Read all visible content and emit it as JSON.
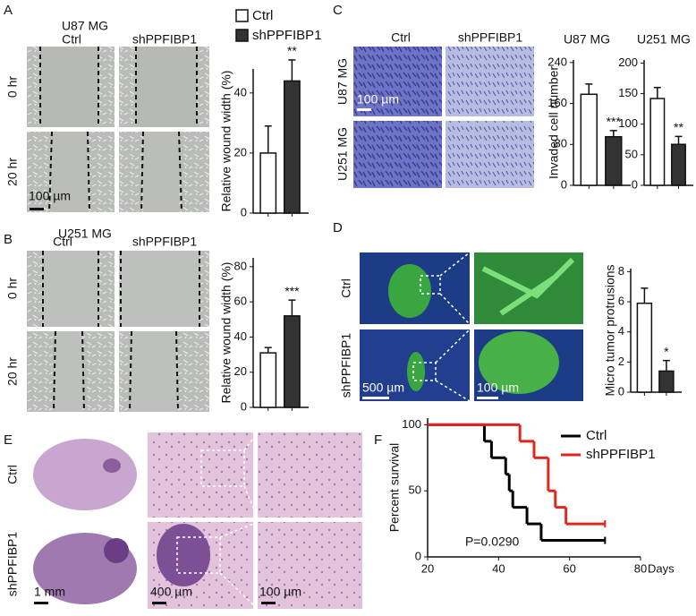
{
  "panel_labels": [
    "A",
    "B",
    "C",
    "D",
    "E",
    "F"
  ],
  "panel_a": {
    "title": "U87 MG",
    "columns": [
      "Ctrl",
      "shPPFIBP1"
    ],
    "rows": [
      "0 hr",
      "20 hr"
    ],
    "scale": "100 µm"
  },
  "panel_b": {
    "title": "U251 MG",
    "columns": [
      "Ctrl",
      "shPPFIBP1"
    ],
    "rows": [
      "0 hr",
      "20 hr"
    ]
  },
  "panel_c": {
    "columns": [
      "Ctrl",
      "shPPFIBP1"
    ],
    "rows": [
      "U87 MG",
      "U251 MG"
    ],
    "scale": "100 µm"
  },
  "panel_d": {
    "rows": [
      "Ctrl",
      "shPPFIBP1"
    ],
    "scales": [
      "500 µm",
      "100 µm"
    ]
  },
  "panel_e": {
    "rows": [
      "Ctrl",
      "shPPFIBP1"
    ],
    "scales": [
      "1 mm",
      "400 µm",
      "100 µm"
    ]
  },
  "chart_data": [
    {
      "type": "bar",
      "ylabel": "Relative wound width (%)",
      "ylim": [
        0,
        48
      ],
      "yticks": [
        0,
        20,
        40
      ],
      "values": [
        20,
        44
      ],
      "errors": [
        9,
        7
      ],
      "colors": [
        "#ffffff",
        "#333333"
      ],
      "annotation": "**",
      "legend": [
        "Ctrl",
        "shPPFIBP1"
      ]
    },
    {
      "type": "bar",
      "ylabel": "Relative wound width (%)",
      "ylim": [
        0,
        85
      ],
      "yticks": [
        0,
        20,
        40,
        60,
        80
      ],
      "values": [
        31,
        52
      ],
      "errors": [
        3,
        9
      ],
      "colors": [
        "#ffffff",
        "#333333"
      ],
      "annotation": "***"
    },
    {
      "type": "bar",
      "title": "U87 MG",
      "ylabel": "Invaded cell number",
      "ylim": [
        0,
        245
      ],
      "yticks": [
        0,
        80,
        160,
        240
      ],
      "values": [
        178,
        95
      ],
      "errors": [
        20,
        12
      ],
      "colors": [
        "#ffffff",
        "#333333"
      ],
      "annotation": "***"
    },
    {
      "type": "bar",
      "title": "U251 MG",
      "ylim": [
        0,
        205
      ],
      "yticks": [
        0,
        50,
        100,
        150,
        200
      ],
      "values": [
        142,
        67
      ],
      "errors": [
        18,
        13
      ],
      "colors": [
        "#ffffff",
        "#333333"
      ],
      "annotation": "**"
    },
    {
      "type": "bar",
      "ylabel": "Micro tumor protrusions",
      "ylim": [
        0,
        8.2
      ],
      "yticks": [
        0,
        2,
        4,
        6,
        8
      ],
      "values": [
        5.9,
        1.4
      ],
      "errors": [
        1.0,
        0.7
      ],
      "colors": [
        "#ffffff",
        "#333333"
      ],
      "annotation": "*"
    },
    {
      "type": "line",
      "step": true,
      "xlabel": "Days",
      "ylabel": "Percent survival",
      "xlim": [
        20,
        80
      ],
      "xticks": [
        20,
        40,
        60,
        80
      ],
      "ylim": [
        0,
        105
      ],
      "yticks": [
        0,
        50,
        100
      ],
      "annotation": "P=0.0290",
      "legend": "upper right",
      "series": [
        {
          "name": "Ctrl",
          "color": "#000000",
          "x": [
            20,
            36,
            38,
            42,
            43,
            44,
            48,
            52,
            70
          ],
          "values": [
            100,
            87.5,
            75,
            62.5,
            50,
            37.5,
            25,
            12.5,
            12.5
          ]
        },
        {
          "name": "shPPFIBP1",
          "color": "#e0251b",
          "x": [
            20,
            46,
            50,
            54,
            56,
            59,
            70
          ],
          "values": [
            100,
            87.5,
            75,
            50,
            37.5,
            25,
            25
          ]
        }
      ]
    }
  ]
}
